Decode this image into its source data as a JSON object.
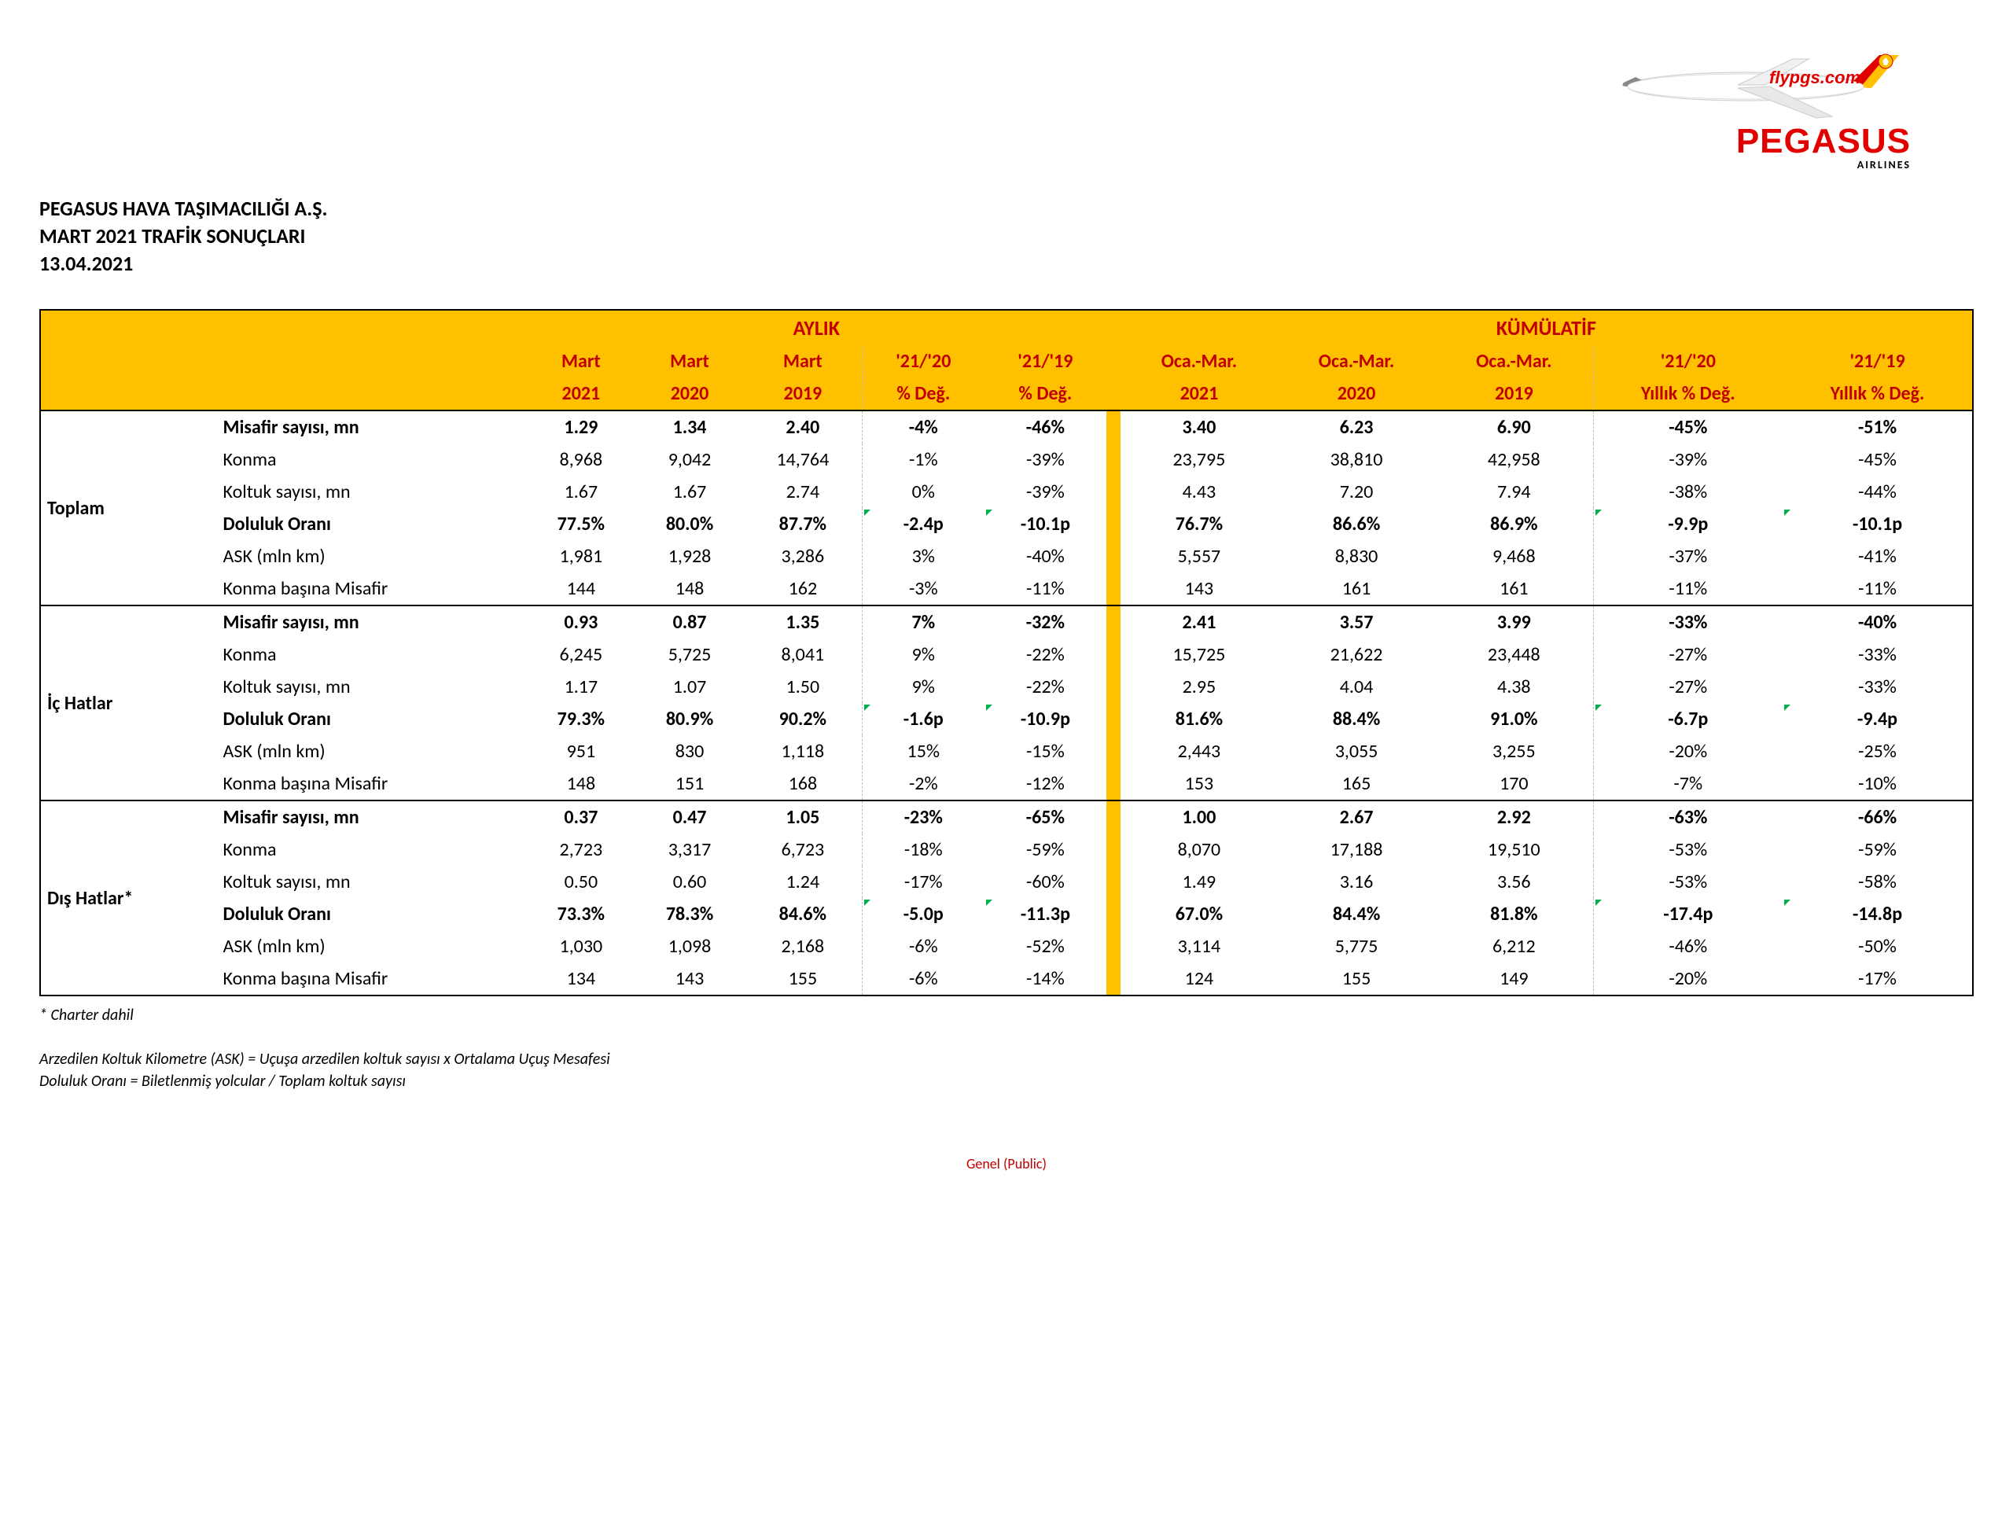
{
  "logo": {
    "brand": "PEGASUS",
    "sub": "AIRLINES",
    "url_text": "flypgs.com",
    "brand_color": "#e10000",
    "plane_body": "#f4f4f4",
    "plane_tail": "#ffc000"
  },
  "header": {
    "line1": "PEGASUS HAVA TAŞIMACILIĞI A.Ş.",
    "line2": "MART 2021 TRAFİK SONUÇLARI",
    "line3": "13.04.2021"
  },
  "table": {
    "colors": {
      "header_bg": "#ffc000",
      "header_text": "#c00000",
      "border": "#000000",
      "dashed": "#bfbfbf"
    },
    "top_headers": {
      "monthly": "AYLIK",
      "cumulative": "KÜMÜLATİF"
    },
    "sub_headers_line1": {
      "m1": "Mart",
      "m2": "Mart",
      "m3": "Mart",
      "m4": "'21/'20",
      "m5": "'21/'19",
      "c1": "Oca.-Mar.",
      "c2": "Oca.-Mar.",
      "c3": "Oca.-Mar.",
      "c4": "'21/'20",
      "c5": "'21/'19"
    },
    "sub_headers_line2": {
      "m1": "2021",
      "m2": "2020",
      "m3": "2019",
      "m4": "% Değ.",
      "m5": "% Değ.",
      "c1": "2021",
      "c2": "2020",
      "c3": "2019",
      "c4": "Yıllık % Değ.",
      "c5": "Yıllık % Değ."
    },
    "groups": [
      {
        "name": "Toplam",
        "rows": [
          {
            "label": "Misafir sayısı, mn",
            "bold": true,
            "m": [
              "1.29",
              "1.34",
              "2.40",
              "-4%",
              "-46%"
            ],
            "c": [
              "3.40",
              "6.23",
              "6.90",
              "-45%",
              "-51%"
            ]
          },
          {
            "label": "Konma",
            "m": [
              "8,968",
              "9,042",
              "14,764",
              "-1%",
              "-39%"
            ],
            "c": [
              "23,795",
              "38,810",
              "42,958",
              "-39%",
              "-45%"
            ]
          },
          {
            "label": "Koltuk sayısı, mn",
            "m": [
              "1.67",
              "1.67",
              "2.74",
              "0%",
              "-39%"
            ],
            "c": [
              "4.43",
              "7.20",
              "7.94",
              "-38%",
              "-44%"
            ]
          },
          {
            "label": "Doluluk Oranı",
            "bold": true,
            "mark": true,
            "m": [
              "77.5%",
              "80.0%",
              "87.7%",
              "-2.4p",
              "-10.1p"
            ],
            "c": [
              "76.7%",
              "86.6%",
              "86.9%",
              "-9.9p",
              "-10.1p"
            ]
          },
          {
            "label": "ASK (mln km)",
            "m": [
              "1,981",
              "1,928",
              "3,286",
              "3%",
              "-40%"
            ],
            "c": [
              "5,557",
              "8,830",
              "9,468",
              "-37%",
              "-41%"
            ]
          },
          {
            "label": "Konma başına Misafir",
            "m": [
              "144",
              "148",
              "162",
              "-3%",
              "-11%"
            ],
            "c": [
              "143",
              "161",
              "161",
              "-11%",
              "-11%"
            ]
          }
        ]
      },
      {
        "name": "İç Hatlar",
        "rows": [
          {
            "label": "Misafir sayısı, mn",
            "bold": true,
            "m": [
              "0.93",
              "0.87",
              "1.35",
              "7%",
              "-32%"
            ],
            "c": [
              "2.41",
              "3.57",
              "3.99",
              "-33%",
              "-40%"
            ]
          },
          {
            "label": "Konma",
            "m": [
              "6,245",
              "5,725",
              "8,041",
              "9%",
              "-22%"
            ],
            "c": [
              "15,725",
              "21,622",
              "23,448",
              "-27%",
              "-33%"
            ]
          },
          {
            "label": "Koltuk sayısı, mn",
            "m": [
              "1.17",
              "1.07",
              "1.50",
              "9%",
              "-22%"
            ],
            "c": [
              "2.95",
              "4.04",
              "4.38",
              "-27%",
              "-33%"
            ]
          },
          {
            "label": "Doluluk Oranı",
            "bold": true,
            "mark": true,
            "m": [
              "79.3%",
              "80.9%",
              "90.2%",
              "-1.6p",
              "-10.9p"
            ],
            "c": [
              "81.6%",
              "88.4%",
              "91.0%",
              "-6.7p",
              "-9.4p"
            ]
          },
          {
            "label": "ASK (mln km)",
            "m": [
              "951",
              "830",
              "1,118",
              "15%",
              "-15%"
            ],
            "c": [
              "2,443",
              "3,055",
              "3,255",
              "-20%",
              "-25%"
            ]
          },
          {
            "label": "Konma başına Misafir",
            "m": [
              "148",
              "151",
              "168",
              "-2%",
              "-12%"
            ],
            "c": [
              "153",
              "165",
              "170",
              "-7%",
              "-10%"
            ]
          }
        ]
      },
      {
        "name": "Dış Hatlar*",
        "rows": [
          {
            "label": "Misafir sayısı, mn",
            "bold": true,
            "m": [
              "0.37",
              "0.47",
              "1.05",
              "-23%",
              "-65%"
            ],
            "c": [
              "1.00",
              "2.67",
              "2.92",
              "-63%",
              "-66%"
            ]
          },
          {
            "label": "Konma",
            "m": [
              "2,723",
              "3,317",
              "6,723",
              "-18%",
              "-59%"
            ],
            "c": [
              "8,070",
              "17,188",
              "19,510",
              "-53%",
              "-59%"
            ]
          },
          {
            "label": "Koltuk sayısı, mn",
            "m": [
              "0.50",
              "0.60",
              "1.24",
              "-17%",
              "-60%"
            ],
            "c": [
              "1.49",
              "3.16",
              "3.56",
              "-53%",
              "-58%"
            ]
          },
          {
            "label": "Doluluk Oranı",
            "bold": true,
            "mark": true,
            "m": [
              "73.3%",
              "78.3%",
              "84.6%",
              "-5.0p",
              "-11.3p"
            ],
            "c": [
              "67.0%",
              "84.4%",
              "81.8%",
              "-17.4p",
              "-14.8p"
            ]
          },
          {
            "label": "ASK (mln km)",
            "m": [
              "1,030",
              "1,098",
              "2,168",
              "-6%",
              "-52%"
            ],
            "c": [
              "3,114",
              "5,775",
              "6,212",
              "-46%",
              "-50%"
            ]
          },
          {
            "label": "Konma başına Misafir",
            "m": [
              "134",
              "143",
              "155",
              "-6%",
              "-14%"
            ],
            "c": [
              "124",
              "155",
              "149",
              "-20%",
              "-17%"
            ]
          }
        ]
      }
    ]
  },
  "footnote": "* Charter dahil",
  "definitions": {
    "line1": "Arzedilen Koltuk Kilometre (ASK) = Uçuşa arzedilen koltuk sayısı x Ortalama Uçuş Mesafesi",
    "line2": "Doluluk Oranı = Biletlenmiş yolcular / Toplam koltuk sayısı"
  },
  "footer": "Genel (Public)"
}
